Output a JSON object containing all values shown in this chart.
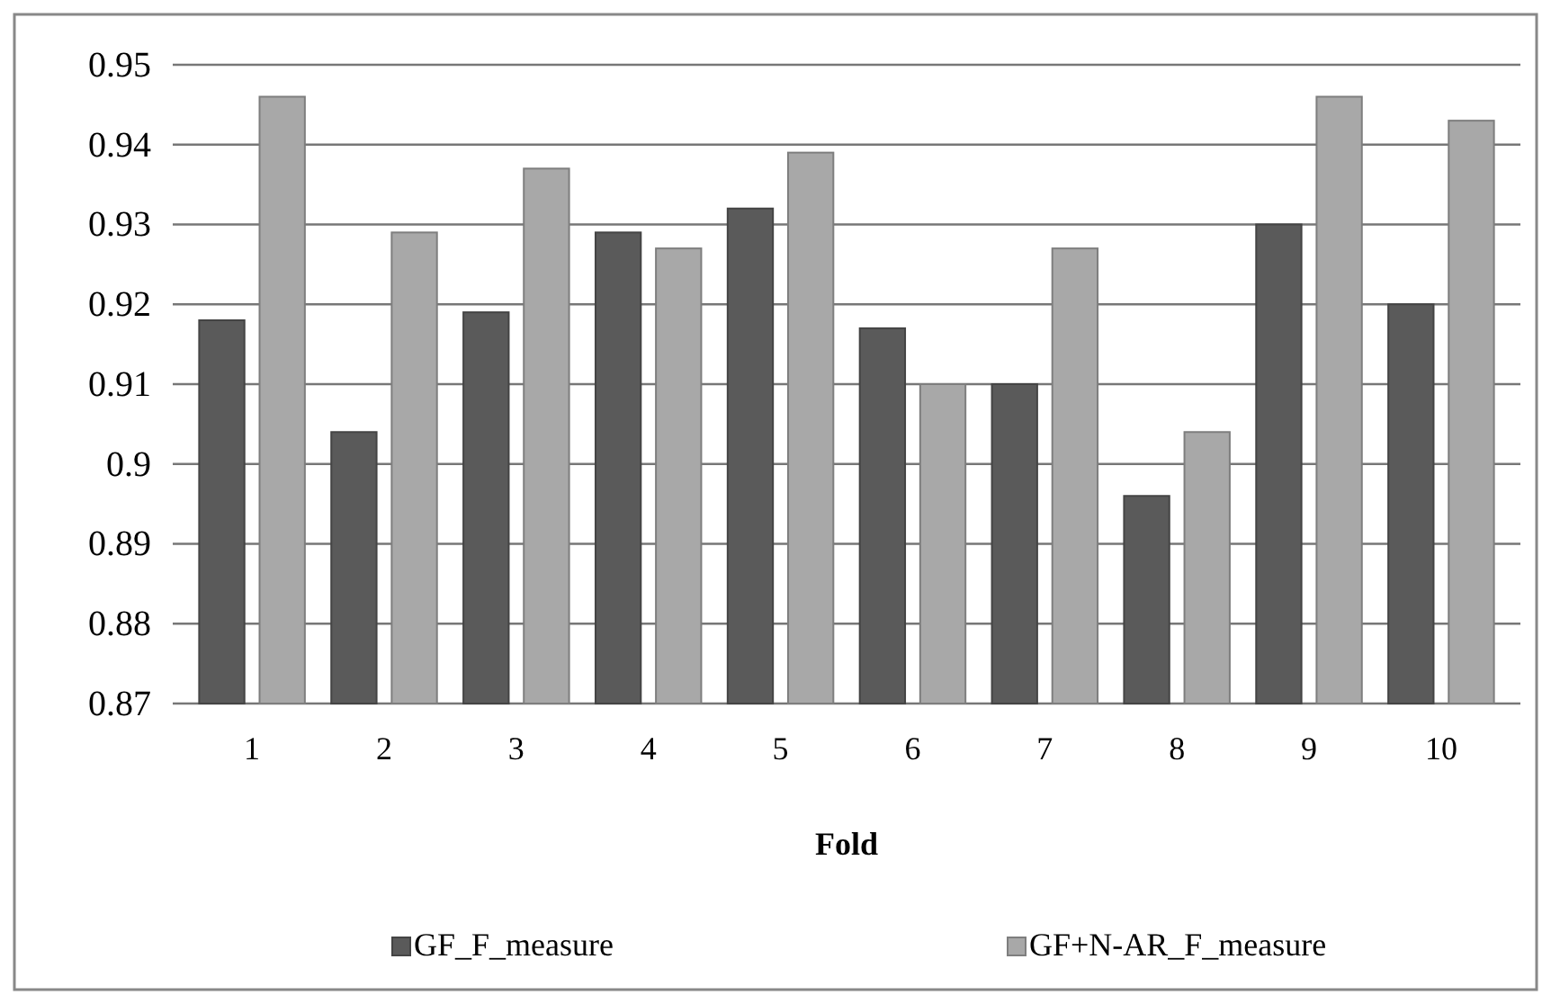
{
  "chart_data": {
    "type": "bar",
    "xlabel": "Fold",
    "categories": [
      "1",
      "2",
      "3",
      "4",
      "5",
      "6",
      "7",
      "8",
      "9",
      "10"
    ],
    "series": [
      {
        "name": "GF_F_measure",
        "color": "#5a5a5a",
        "values": [
          0.918,
          0.904,
          0.919,
          0.929,
          0.932,
          0.917,
          0.91,
          0.896,
          0.93,
          0.92
        ]
      },
      {
        "name": "GF+N-AR_F_measure",
        "color": "#a8a8a8",
        "values": [
          0.946,
          0.929,
          0.937,
          0.927,
          0.939,
          0.91,
          0.927,
          0.904,
          0.946,
          0.943
        ]
      }
    ],
    "ylim": [
      0.87,
      0.95
    ],
    "yticks": [
      0.87,
      0.88,
      0.89,
      0.9,
      0.91,
      0.92,
      0.93,
      0.94,
      0.95
    ],
    "grid": "y",
    "legend": "bottom"
  }
}
